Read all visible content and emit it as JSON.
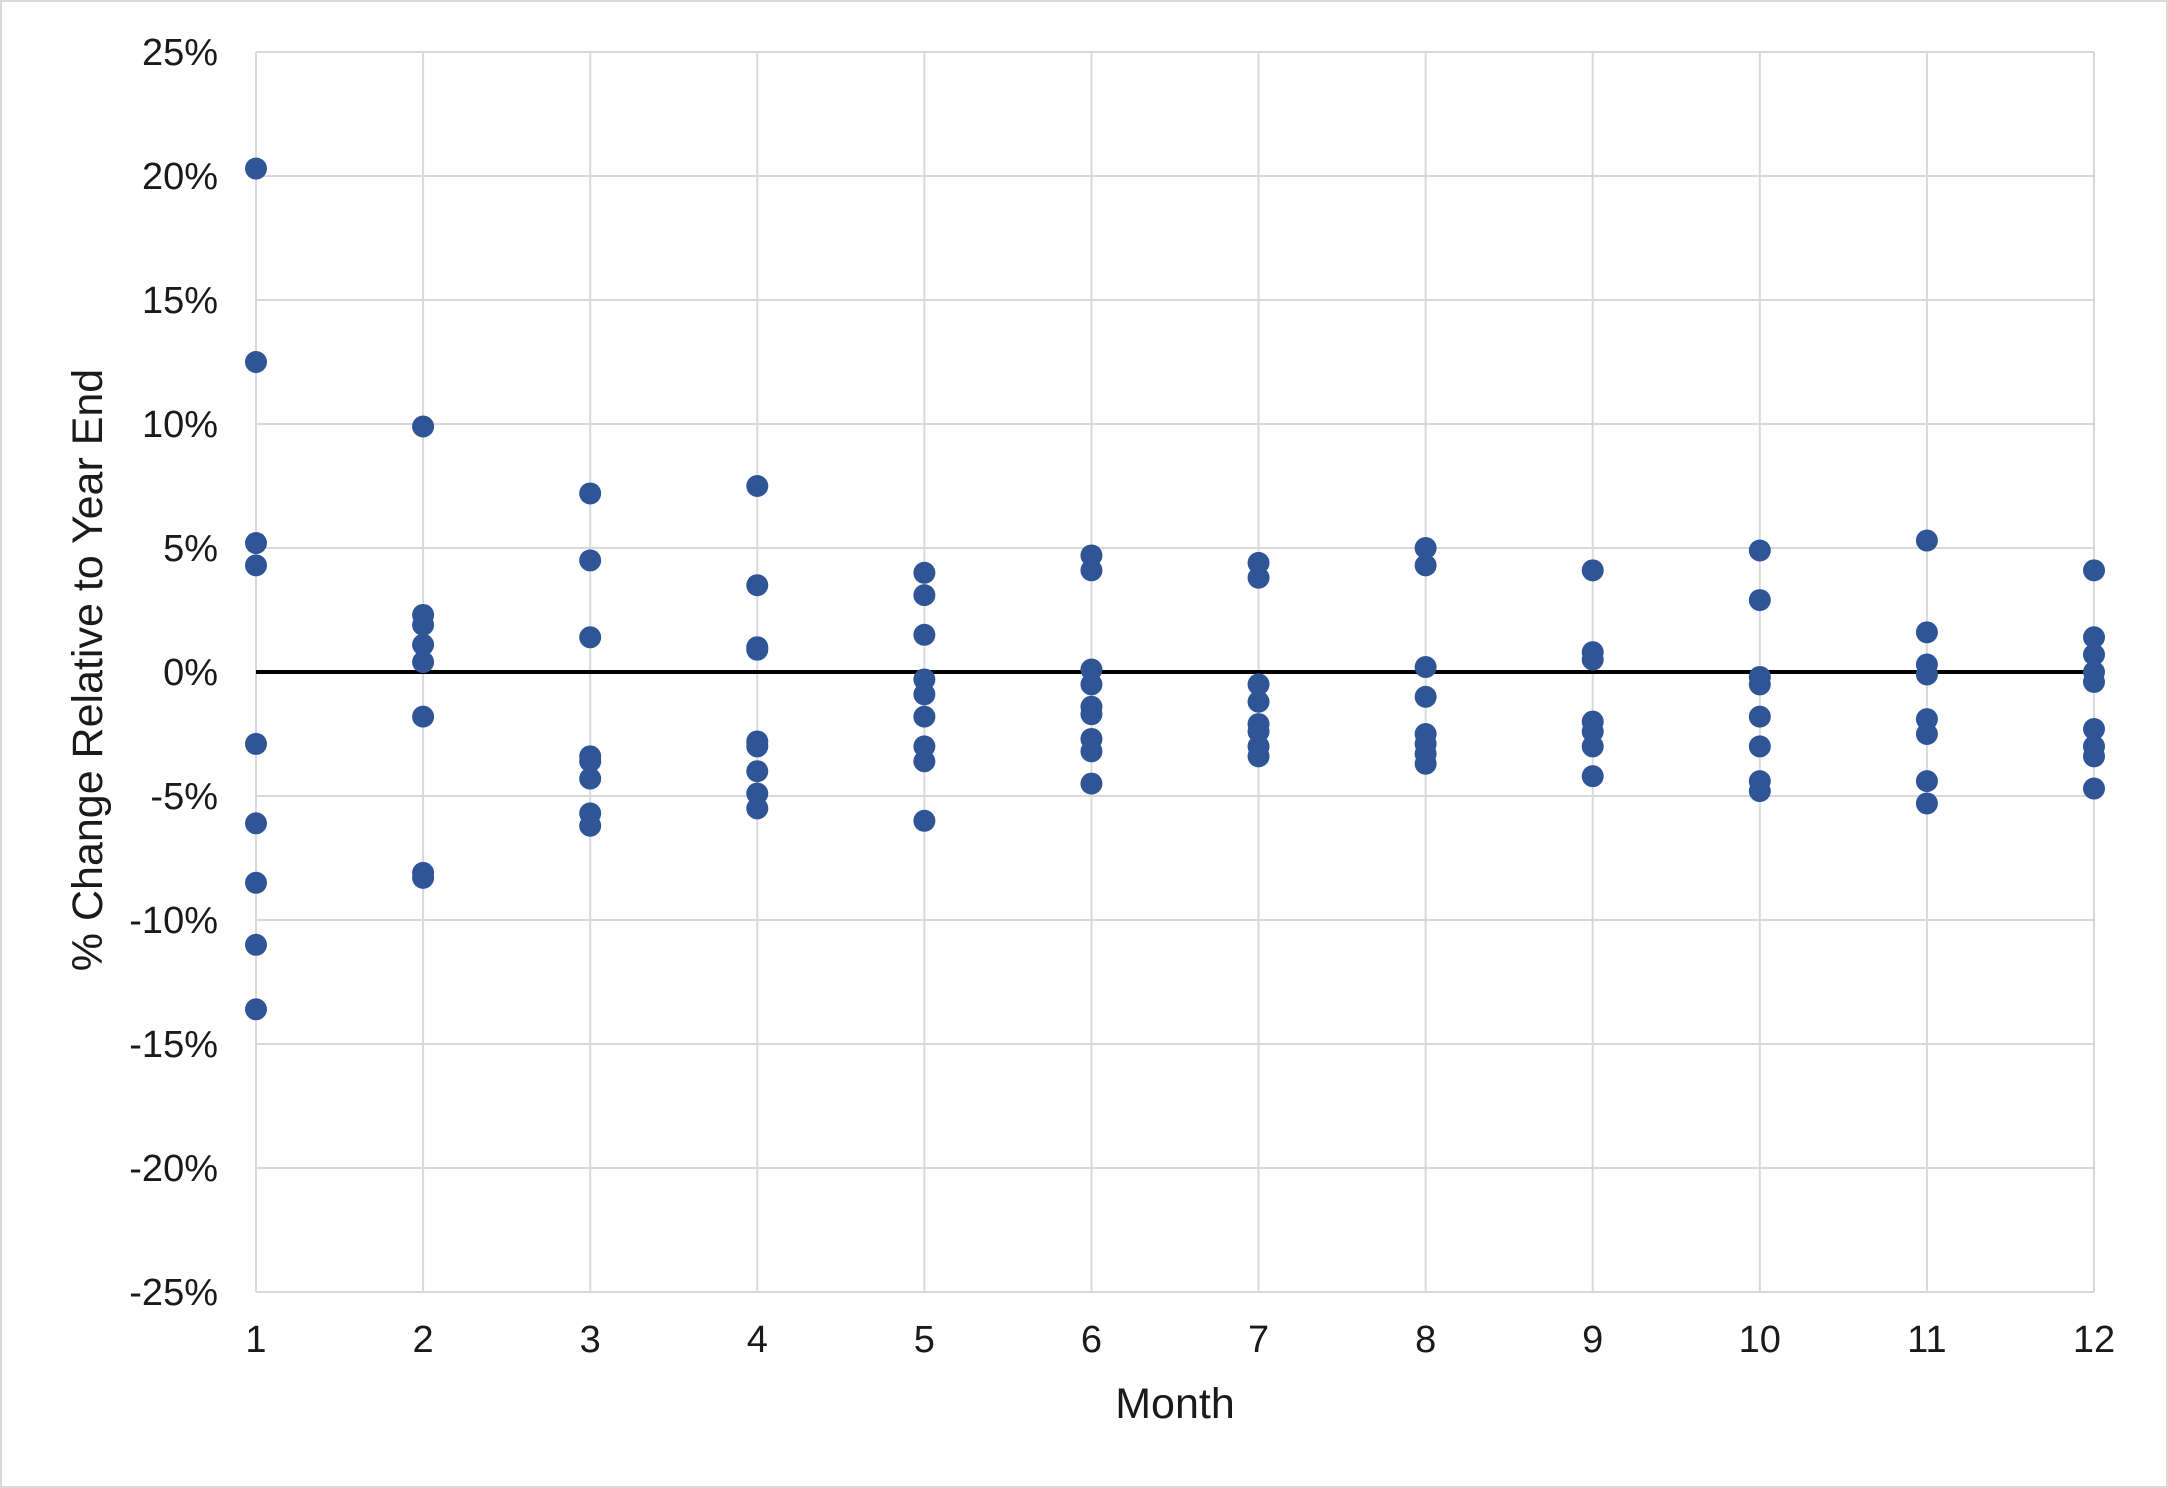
{
  "chart_data": {
    "type": "scatter",
    "title": "",
    "xlabel": "Month",
    "ylabel": "% Change Relative to Year End",
    "xlim": [
      1,
      12
    ],
    "ylim": [
      -25,
      25
    ],
    "x_ticks": [
      "1",
      "2",
      "3",
      "4",
      "5",
      "6",
      "7",
      "8",
      "9",
      "10",
      "11",
      "12"
    ],
    "y_ticks": [
      "-25%",
      "-20%",
      "-15%",
      "-10%",
      "-5%",
      "0%",
      "5%",
      "10%",
      "15%",
      "20%",
      "25%"
    ],
    "grid": true,
    "legend": "none",
    "zero_line": true,
    "colors": {
      "points": "#2F5597",
      "grid": "#d9d9d9",
      "zero_line": "#000000"
    },
    "series": [
      {
        "points": [
          [
            1,
            20.3
          ],
          [
            1,
            12.5
          ],
          [
            1,
            5.2
          ],
          [
            1,
            4.3
          ],
          [
            1,
            -2.9
          ],
          [
            1,
            -6.1
          ],
          [
            1,
            -8.5
          ],
          [
            1,
            -11.0
          ],
          [
            1,
            -13.6
          ],
          [
            2,
            9.9
          ],
          [
            2,
            2.3
          ],
          [
            2,
            1.9
          ],
          [
            2,
            1.1
          ],
          [
            2,
            0.4
          ],
          [
            2,
            -1.8
          ],
          [
            2,
            -8.1
          ],
          [
            2,
            -8.3
          ],
          [
            3,
            7.2
          ],
          [
            3,
            4.5
          ],
          [
            3,
            1.4
          ],
          [
            3,
            -3.4
          ],
          [
            3,
            -3.6
          ],
          [
            3,
            -4.3
          ],
          [
            3,
            -5.7
          ],
          [
            3,
            -6.2
          ],
          [
            4,
            7.5
          ],
          [
            4,
            3.5
          ],
          [
            4,
            1.0
          ],
          [
            4,
            0.9
          ],
          [
            4,
            -2.8
          ],
          [
            4,
            -3.0
          ],
          [
            4,
            -4.0
          ],
          [
            4,
            -4.9
          ],
          [
            4,
            -5.5
          ],
          [
            5,
            4.0
          ],
          [
            5,
            3.1
          ],
          [
            5,
            1.5
          ],
          [
            5,
            -0.3
          ],
          [
            5,
            -0.9
          ],
          [
            5,
            -1.8
          ],
          [
            5,
            -3.0
          ],
          [
            5,
            -3.6
          ],
          [
            5,
            -6.0
          ],
          [
            6,
            4.7
          ],
          [
            6,
            4.1
          ],
          [
            6,
            0.1
          ],
          [
            6,
            -0.5
          ],
          [
            6,
            -1.4
          ],
          [
            6,
            -1.7
          ],
          [
            6,
            -2.7
          ],
          [
            6,
            -3.2
          ],
          [
            6,
            -4.5
          ],
          [
            7,
            4.4
          ],
          [
            7,
            3.8
          ],
          [
            7,
            -0.5
          ],
          [
            7,
            -1.2
          ],
          [
            7,
            -2.1
          ],
          [
            7,
            -2.4
          ],
          [
            7,
            -3.0
          ],
          [
            7,
            -3.4
          ],
          [
            8,
            5.0
          ],
          [
            8,
            4.3
          ],
          [
            8,
            0.2
          ],
          [
            8,
            -1.0
          ],
          [
            8,
            -2.5
          ],
          [
            8,
            -2.9
          ],
          [
            8,
            -3.3
          ],
          [
            8,
            -3.7
          ],
          [
            9,
            4.1
          ],
          [
            9,
            0.8
          ],
          [
            9,
            0.5
          ],
          [
            9,
            -2.0
          ],
          [
            9,
            -2.4
          ],
          [
            9,
            -3.0
          ],
          [
            9,
            -4.2
          ],
          [
            10,
            4.9
          ],
          [
            10,
            2.9
          ],
          [
            10,
            -0.2
          ],
          [
            10,
            -0.5
          ],
          [
            10,
            -1.8
          ],
          [
            10,
            -3.0
          ],
          [
            10,
            -4.4
          ],
          [
            10,
            -4.8
          ],
          [
            11,
            5.3
          ],
          [
            11,
            1.6
          ],
          [
            11,
            0.3
          ],
          [
            11,
            -0.1
          ],
          [
            11,
            -1.9
          ],
          [
            11,
            -2.5
          ],
          [
            11,
            -4.4
          ],
          [
            11,
            -5.3
          ],
          [
            12,
            4.1
          ],
          [
            12,
            1.4
          ],
          [
            12,
            0.7
          ],
          [
            12,
            0.0
          ],
          [
            12,
            -0.4
          ],
          [
            12,
            -2.3
          ],
          [
            12,
            -3.0
          ],
          [
            12,
            -3.4
          ],
          [
            12,
            -4.7
          ]
        ]
      }
    ]
  }
}
